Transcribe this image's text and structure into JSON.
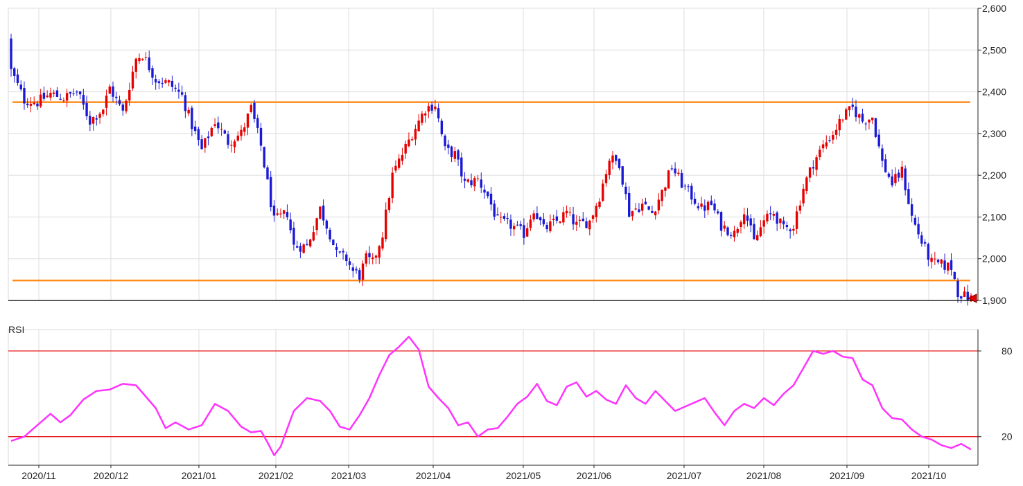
{
  "chart_data": [
    {
      "type": "candlestick",
      "ylim": [
        1900,
        2600
      ],
      "y_ticks": [
        "2,600",
        "2,500",
        "2,400",
        "2,300",
        "2,200",
        "2,100",
        "2,000",
        "1,900"
      ],
      "y_tick_values": [
        2600,
        2500,
        2400,
        2300,
        2200,
        2100,
        2000,
        1900
      ],
      "x_ticks": [
        "2020/11",
        "2020/12",
        "2021/01",
        "2021/02",
        "2021/03",
        "2021/04",
        "2021/05",
        "2021/06",
        "2021/07",
        "2021/08",
        "2021/09",
        "2021/10"
      ],
      "grid": true,
      "colors": {
        "up": "#e60000",
        "down": "#1a1ad6",
        "resistance": "#ff8c1a"
      },
      "horizontal_lines": [
        2375,
        1948
      ],
      "last_price_marker": 1905,
      "close_path": [
        [
          0,
          2450
        ],
        [
          4,
          2380
        ],
        [
          8,
          2375
        ],
        [
          12,
          2395
        ],
        [
          16,
          2385
        ],
        [
          20,
          2400
        ],
        [
          24,
          2330
        ],
        [
          28,
          2360
        ],
        [
          30,
          2410
        ],
        [
          34,
          2350
        ],
        [
          38,
          2480
        ],
        [
          40,
          2490
        ],
        [
          42,
          2460
        ],
        [
          44,
          2430
        ],
        [
          48,
          2420
        ],
        [
          52,
          2390
        ],
        [
          55,
          2320
        ],
        [
          58,
          2260
        ],
        [
          62,
          2330
        ],
        [
          66,
          2280
        ],
        [
          70,
          2300
        ],
        [
          73,
          2360
        ],
        [
          76,
          2270
        ],
        [
          78,
          2180
        ],
        [
          80,
          2090
        ],
        [
          84,
          2110
        ],
        [
          86,
          2030
        ],
        [
          90,
          2030
        ],
        [
          94,
          2120
        ],
        [
          97,
          2060
        ],
        [
          99,
          2010
        ],
        [
          102,
          2000
        ],
        [
          104,
          1970
        ],
        [
          106,
          1960
        ],
        [
          108,
          2000
        ],
        [
          110,
          1990
        ],
        [
          113,
          2060
        ],
        [
          116,
          2200
        ],
        [
          119,
          2250
        ],
        [
          122,
          2300
        ],
        [
          126,
          2360
        ],
        [
          129,
          2370
        ],
        [
          132,
          2260
        ],
        [
          135,
          2250
        ],
        [
          138,
          2180
        ],
        [
          142,
          2190
        ],
        [
          145,
          2150
        ],
        [
          148,
          2090
        ],
        [
          152,
          2080
        ],
        [
          156,
          2060
        ],
        [
          159,
          2120
        ],
        [
          162,
          2070
        ],
        [
          166,
          2090
        ],
        [
          169,
          2110
        ],
        [
          172,
          2080
        ],
        [
          176,
          2090
        ],
        [
          179,
          2150
        ],
        [
          182,
          2240
        ],
        [
          185,
          2230
        ],
        [
          188,
          2110
        ],
        [
          192,
          2130
        ],
        [
          195,
          2110
        ],
        [
          198,
          2160
        ],
        [
          201,
          2220
        ],
        [
          204,
          2180
        ],
        [
          207,
          2150
        ],
        [
          210,
          2120
        ],
        [
          213,
          2130
        ],
        [
          216,
          2080
        ],
        [
          220,
          2060
        ],
        [
          223,
          2120
        ],
        [
          226,
          2040
        ],
        [
          229,
          2090
        ],
        [
          232,
          2110
        ],
        [
          235,
          2070
        ],
        [
          238,
          2080
        ],
        [
          241,
          2170
        ],
        [
          244,
          2230
        ],
        [
          247,
          2270
        ],
        [
          250,
          2300
        ],
        [
          253,
          2340
        ],
        [
          256,
          2360
        ],
        [
          259,
          2330
        ],
        [
          262,
          2340
        ],
        [
          265,
          2230
        ],
        [
          268,
          2180
        ],
        [
          271,
          2210
        ],
        [
          274,
          2100
        ],
        [
          277,
          2040
        ],
        [
          280,
          1990
        ],
        [
          283,
          1985
        ],
        [
          286,
          1980
        ],
        [
          288,
          1920
        ],
        [
          290,
          1910
        ],
        [
          292,
          1905
        ]
      ]
    },
    {
      "type": "line",
      "title": "RSI",
      "ylim": [
        0,
        95
      ],
      "y_ticks": [
        "80",
        "20"
      ],
      "y_tick_values": [
        80,
        20
      ],
      "reference_lines": [
        80,
        20
      ],
      "colors": {
        "line": "#ff33ff",
        "reference": "#e60000"
      },
      "series": [
        {
          "values": [
            [
              0,
              17
            ],
            [
              4,
              20
            ],
            [
              8,
              28
            ],
            [
              12,
              36
            ],
            [
              15,
              30
            ],
            [
              18,
              35
            ],
            [
              22,
              46
            ],
            [
              26,
              52
            ],
            [
              30,
              53
            ],
            [
              34,
              57
            ],
            [
              38,
              56
            ],
            [
              41,
              48
            ],
            [
              44,
              40
            ],
            [
              47,
              26
            ],
            [
              50,
              30
            ],
            [
              54,
              25
            ],
            [
              58,
              28
            ],
            [
              62,
              43
            ],
            [
              66,
              38
            ],
            [
              70,
              27
            ],
            [
              73,
              23
            ],
            [
              76,
              24
            ],
            [
              78,
              16
            ],
            [
              80,
              7
            ],
            [
              82,
              13
            ],
            [
              86,
              38
            ],
            [
              90,
              47
            ],
            [
              94,
              45
            ],
            [
              97,
              38
            ],
            [
              100,
              27
            ],
            [
              103,
              25
            ],
            [
              106,
              35
            ],
            [
              109,
              47
            ],
            [
              112,
              63
            ],
            [
              115,
              77
            ],
            [
              118,
              83
            ],
            [
              121,
              90
            ],
            [
              124,
              81
            ],
            [
              127,
              55
            ],
            [
              130,
              47
            ],
            [
              133,
              40
            ],
            [
              136,
              28
            ],
            [
              139,
              30
            ],
            [
              142,
              20
            ],
            [
              145,
              25
            ],
            [
              148,
              26
            ],
            [
              151,
              34
            ],
            [
              154,
              43
            ],
            [
              157,
              48
            ],
            [
              160,
              57
            ],
            [
              163,
              45
            ],
            [
              166,
              42
            ],
            [
              169,
              55
            ],
            [
              172,
              58
            ],
            [
              175,
              48
            ],
            [
              178,
              52
            ],
            [
              181,
              46
            ],
            [
              184,
              43
            ],
            [
              187,
              56
            ],
            [
              190,
              47
            ],
            [
              193,
              43
            ],
            [
              196,
              52
            ],
            [
              199,
              45
            ],
            [
              202,
              38
            ],
            [
              205,
              41
            ],
            [
              208,
              44
            ],
            [
              211,
              47
            ],
            [
              214,
              37
            ],
            [
              217,
              28
            ],
            [
              220,
              38
            ],
            [
              223,
              43
            ],
            [
              226,
              40
            ],
            [
              229,
              47
            ],
            [
              232,
              42
            ],
            [
              235,
              50
            ],
            [
              238,
              56
            ],
            [
              241,
              68
            ],
            [
              244,
              80
            ],
            [
              247,
              78
            ],
            [
              250,
              80
            ],
            [
              253,
              76
            ],
            [
              256,
              75
            ],
            [
              259,
              60
            ],
            [
              262,
              56
            ],
            [
              265,
              40
            ],
            [
              268,
              33
            ],
            [
              271,
              32
            ],
            [
              274,
              25
            ],
            [
              277,
              20
            ],
            [
              280,
              18
            ],
            [
              283,
              14
            ],
            [
              286,
              12
            ],
            [
              289,
              15
            ],
            [
              292,
              11
            ]
          ]
        }
      ]
    }
  ]
}
